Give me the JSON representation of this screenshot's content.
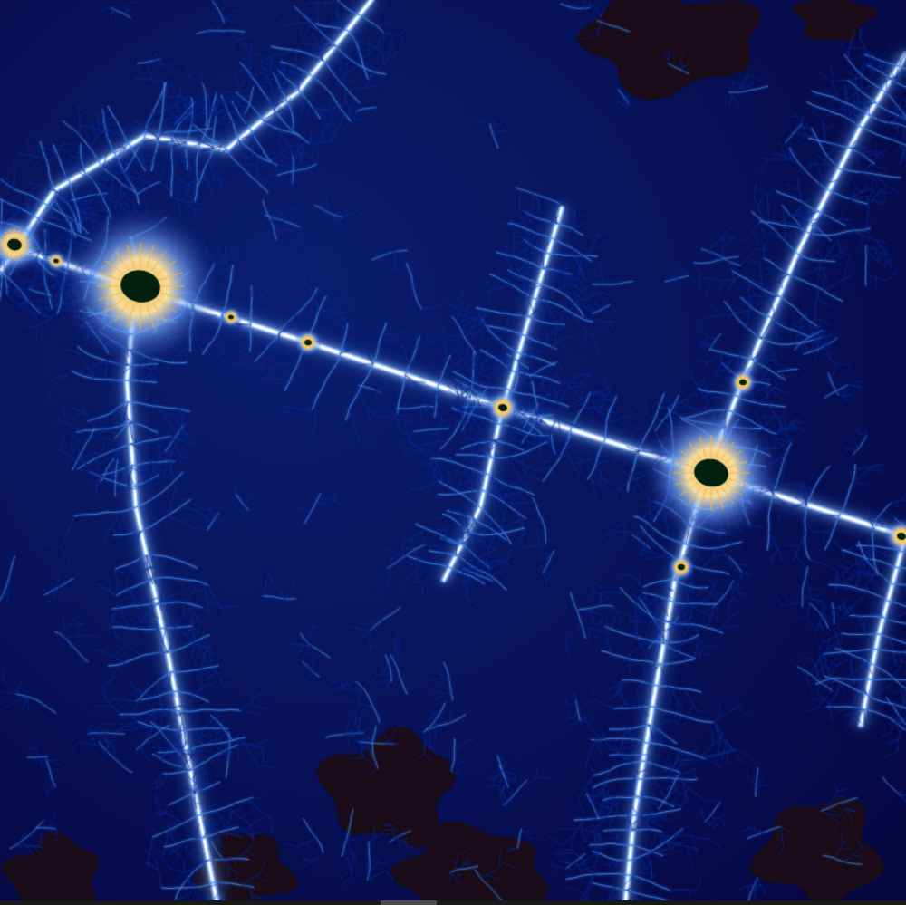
{
  "image": {
    "subject": "mandelbrot-zoom",
    "palette": {
      "deep_background": "#06033a",
      "mid_blue": "#0c2a8a",
      "bright_blue": "#3b7fe0",
      "highlight": "#dce8ff",
      "gold": "#f2b83a",
      "set_interior": "#02200f",
      "dark_blob": "#1a0c18"
    }
  }
}
